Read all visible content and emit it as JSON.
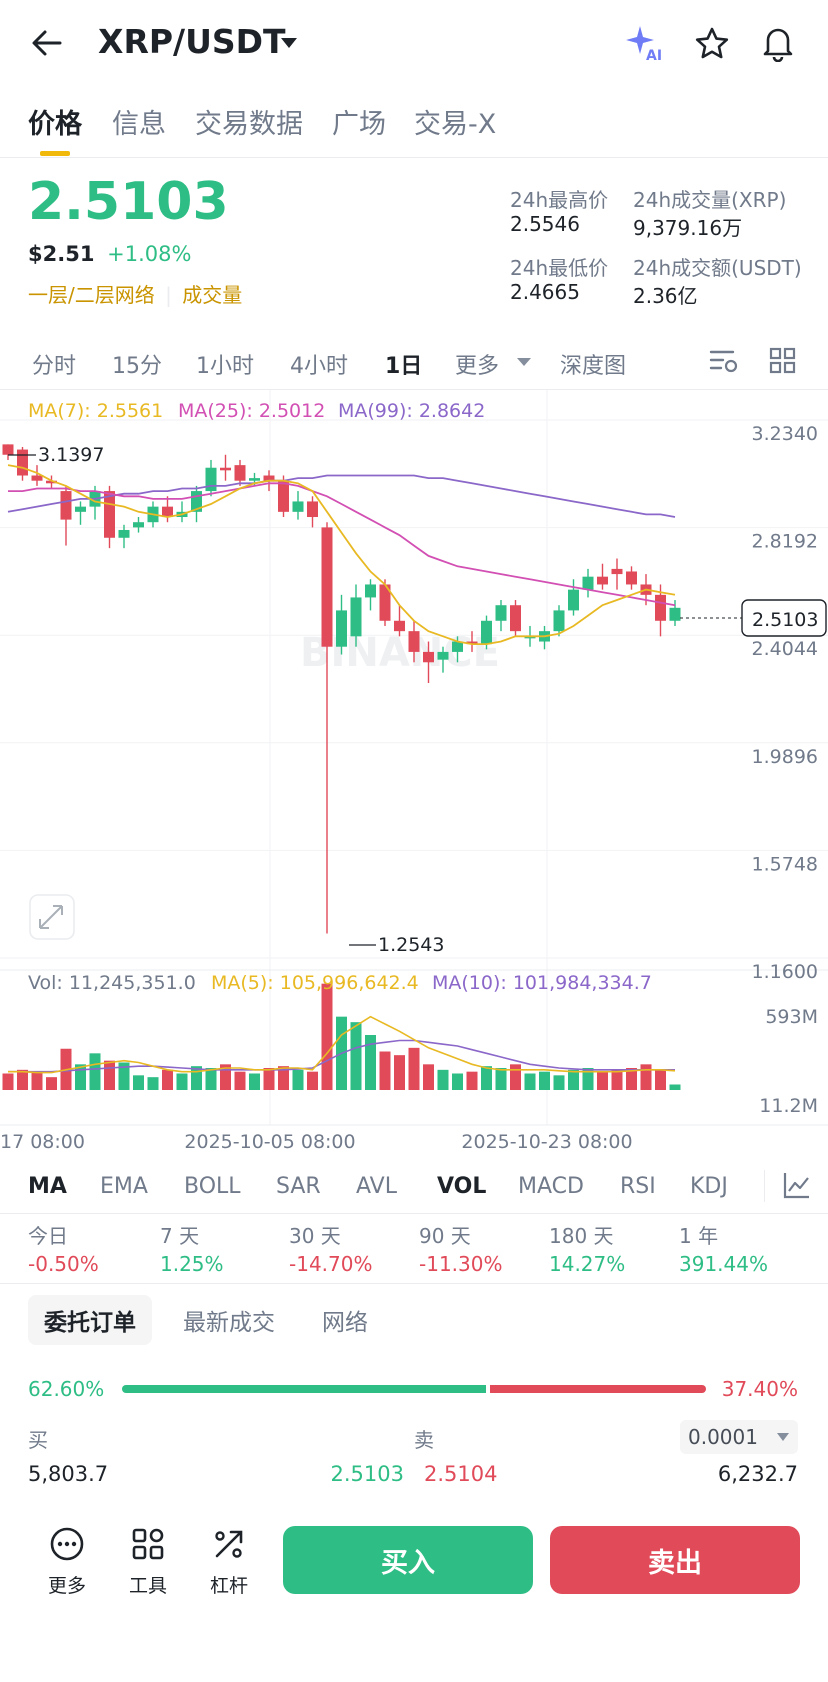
{
  "header": {
    "pair": "XRP/USDT"
  },
  "tabs": [
    "价格",
    "信息",
    "交易数据",
    "广场",
    "交易-X"
  ],
  "price": {
    "last": "2.5103",
    "usd": "$2.51",
    "change": "+1.08%",
    "tag_network": "一层/二层网络",
    "tag_volume": "成交量",
    "stats": {
      "high_label": "24h最高价",
      "high": "2.5546",
      "low_label": "24h最低价",
      "low": "2.4665",
      "vol_label": "24h成交量(XRP)",
      "vol": "9,379.16万",
      "amt_label": "24h成交额(USDT)",
      "amt": "2.36亿"
    }
  },
  "intervals": [
    "分时",
    "15分",
    "1小时",
    "4小时",
    "1日",
    "更多",
    "深度图"
  ],
  "chart": {
    "ma7": "MA(7): 2.5561",
    "ma25": "MA(25): 2.5012",
    "ma99": "MA(99): 2.8642",
    "y_ticks": [
      "3.2340",
      "2.8192",
      "2.4044",
      "1.9896",
      "1.5748",
      "1.1600"
    ],
    "current_tag": "2.5103",
    "hi_label": "3.1397",
    "lo_label": "1.2543",
    "watermark": "BINANCE",
    "vol_label": "Vol: 11,245,351.0",
    "vol_ma5": "MA(5): 105,996,642.4",
    "vol_ma10": "MA(10): 101,984,334.7",
    "vol_ticks": [
      "593M",
      "11.2M"
    ],
    "x_labels": [
      "17 08:00",
      "2025-10-05 08:00",
      "2025-10-23 08:00"
    ]
  },
  "indicators": [
    "MA",
    "EMA",
    "BOLL",
    "SAR",
    "AVL",
    "VOL",
    "MACD",
    "RSI",
    "KDJ"
  ],
  "performance": [
    {
      "label": "今日",
      "value": "-0.50%",
      "dir": "down"
    },
    {
      "label": "7 天",
      "value": "1.25%",
      "dir": "up"
    },
    {
      "label": "30 天",
      "value": "-14.70%",
      "dir": "down"
    },
    {
      "label": "90 天",
      "value": "-11.30%",
      "dir": "down"
    },
    {
      "label": "180 天",
      "value": "14.27%",
      "dir": "up"
    },
    {
      "label": "1 年",
      "value": "391.44%",
      "dir": "up"
    }
  ],
  "orders": {
    "tabs": [
      "委托订单",
      "最新成交",
      "网络"
    ],
    "buy_pct": "62.60%",
    "sell_pct": "37.40%",
    "buy_ratio": 0.626,
    "buy_label": "买",
    "sell_label": "卖",
    "precision": "0.0001",
    "rows": [
      {
        "buy_qty": "5,803.7",
        "buy_price": "2.5103",
        "sell_price": "2.5104",
        "sell_qty": "6,232.7"
      }
    ]
  },
  "bottom": {
    "more": "更多",
    "tools": "工具",
    "leverage": "杠杆",
    "buy": "买入",
    "sell": "卖出"
  },
  "colors": {
    "up": "#2ebd85",
    "down": "#e04a59",
    "accent": "#f0b90b",
    "ma7": "#e8b923",
    "ma25": "#d24fb3",
    "ma99": "#8a67c9"
  },
  "chart_data": {
    "type": "candlestick",
    "y_range": [
      1.16,
      3.234
    ],
    "ohlc": [
      [
        3.14,
        3.14,
        3.08,
        3.1
      ],
      [
        3.12,
        3.13,
        3.0,
        3.02
      ],
      [
        3.02,
        3.06,
        2.98,
        3.0
      ],
      [
        3.0,
        3.02,
        2.97,
        2.99
      ],
      [
        2.96,
        2.98,
        2.75,
        2.85
      ],
      [
        2.88,
        2.92,
        2.83,
        2.9
      ],
      [
        2.9,
        2.98,
        2.85,
        2.96
      ],
      [
        2.96,
        2.98,
        2.74,
        2.78
      ],
      [
        2.78,
        2.83,
        2.74,
        2.81
      ],
      [
        2.82,
        2.86,
        2.8,
        2.84
      ],
      [
        2.84,
        2.92,
        2.82,
        2.9
      ],
      [
        2.9,
        2.94,
        2.84,
        2.86
      ],
      [
        2.86,
        2.92,
        2.84,
        2.88
      ],
      [
        2.88,
        2.98,
        2.84,
        2.96
      ],
      [
        2.96,
        3.08,
        2.94,
        3.05
      ],
      [
        3.05,
        3.1,
        3.0,
        3.04
      ],
      [
        3.06,
        3.08,
        2.98,
        3.0
      ],
      [
        3.0,
        3.03,
        2.98,
        3.01
      ],
      [
        3.02,
        3.04,
        2.96,
        3.0
      ],
      [
        3.0,
        3.02,
        2.86,
        2.88
      ],
      [
        2.88,
        2.96,
        2.85,
        2.92
      ],
      [
        2.92,
        2.94,
        2.82,
        2.86
      ],
      [
        2.82,
        2.84,
        1.2543,
        2.36
      ],
      [
        2.36,
        2.56,
        2.33,
        2.5
      ],
      [
        2.4,
        2.6,
        2.36,
        2.55
      ],
      [
        2.55,
        2.62,
        2.5,
        2.6
      ],
      [
        2.6,
        2.62,
        2.44,
        2.46
      ],
      [
        2.46,
        2.52,
        2.4,
        2.42
      ],
      [
        2.42,
        2.46,
        2.3,
        2.34
      ],
      [
        2.34,
        2.38,
        2.22,
        2.3
      ],
      [
        2.31,
        2.36,
        2.26,
        2.34
      ],
      [
        2.34,
        2.4,
        2.3,
        2.38
      ],
      [
        2.38,
        2.42,
        2.34,
        2.37
      ],
      [
        2.37,
        2.48,
        2.35,
        2.46
      ],
      [
        2.46,
        2.54,
        2.42,
        2.52
      ],
      [
        2.52,
        2.54,
        2.4,
        2.42
      ],
      [
        2.4,
        2.44,
        2.36,
        2.4
      ],
      [
        2.38,
        2.44,
        2.35,
        2.42
      ],
      [
        2.42,
        2.52,
        2.4,
        2.5
      ],
      [
        2.5,
        2.62,
        2.48,
        2.58
      ],
      [
        2.58,
        2.66,
        2.55,
        2.63
      ],
      [
        2.63,
        2.68,
        2.58,
        2.6
      ],
      [
        2.66,
        2.7,
        2.58,
        2.64
      ],
      [
        2.65,
        2.67,
        2.58,
        2.6
      ],
      [
        2.6,
        2.64,
        2.52,
        2.56
      ],
      [
        2.56,
        2.6,
        2.4,
        2.46
      ],
      [
        2.46,
        2.54,
        2.44,
        2.51
      ]
    ],
    "ma7": [
      3.06,
      3.05,
      3.03,
      3.0,
      2.98,
      2.95,
      2.92,
      2.91,
      2.9,
      2.88,
      2.87,
      2.86,
      2.87,
      2.89,
      2.91,
      2.94,
      2.97,
      2.99,
      3.0,
      3.0,
      2.99,
      2.96,
      2.88,
      2.8,
      2.72,
      2.65,
      2.6,
      2.52,
      2.46,
      2.42,
      2.4,
      2.38,
      2.37,
      2.37,
      2.38,
      2.4,
      2.4,
      2.4,
      2.41,
      2.44,
      2.48,
      2.52,
      2.54,
      2.56,
      2.58,
      2.57,
      2.56
    ],
    "ma25": [
      2.96,
      2.96,
      2.97,
      2.97,
      2.97,
      2.96,
      2.96,
      2.95,
      2.94,
      2.94,
      2.93,
      2.93,
      2.93,
      2.94,
      2.95,
      2.96,
      2.97,
      2.98,
      2.99,
      2.99,
      2.98,
      2.96,
      2.94,
      2.91,
      2.88,
      2.85,
      2.82,
      2.79,
      2.75,
      2.71,
      2.69,
      2.67,
      2.66,
      2.65,
      2.64,
      2.63,
      2.62,
      2.61,
      2.6,
      2.59,
      2.58,
      2.57,
      2.56,
      2.55,
      2.54,
      2.53,
      2.52
    ],
    "ma99": [
      2.88,
      2.89,
      2.9,
      2.91,
      2.92,
      2.93,
      2.93,
      2.94,
      2.95,
      2.95,
      2.96,
      2.96,
      2.97,
      2.97,
      2.98,
      2.98,
      2.99,
      2.99,
      3.0,
      3.0,
      3.01,
      3.01,
      3.02,
      3.02,
      3.02,
      3.02,
      3.02,
      3.02,
      3.02,
      3.01,
      3.01,
      3.0,
      2.99,
      2.98,
      2.97,
      2.96,
      2.95,
      2.94,
      2.93,
      2.92,
      2.91,
      2.9,
      2.89,
      2.88,
      2.87,
      2.87,
      2.86
    ],
    "volume_max": 593,
    "volume": [
      18,
      22,
      20,
      14,
      45,
      28,
      40,
      32,
      30,
      16,
      14,
      22,
      18,
      26,
      24,
      28,
      20,
      18,
      24,
      26,
      22,
      20,
      116,
      80,
      74,
      60,
      42,
      38,
      46,
      28,
      22,
      18,
      20,
      26,
      24,
      28,
      18,
      20,
      16,
      22,
      24,
      20,
      22,
      24,
      28,
      22,
      6
    ],
    "vol_ma5": [
      20,
      20,
      19,
      19,
      22,
      25,
      28,
      30,
      32,
      30,
      26,
      22,
      20,
      20,
      22,
      24,
      24,
      22,
      22,
      24,
      24,
      22,
      40,
      60,
      70,
      80,
      72,
      64,
      55,
      46,
      40,
      34,
      28,
      24,
      22,
      22,
      22,
      22,
      21,
      20,
      20,
      20,
      20,
      21,
      22,
      22,
      21
    ],
    "vol_ma10": [
      20,
      20,
      20,
      20,
      21,
      22,
      23,
      24,
      25,
      26,
      26,
      25,
      24,
      23,
      22,
      22,
      22,
      22,
      22,
      22,
      23,
      24,
      32,
      40,
      46,
      50,
      52,
      54,
      54,
      52,
      50,
      48,
      44,
      40,
      36,
      32,
      28,
      26,
      24,
      23,
      22,
      22,
      22,
      22,
      22,
      22,
      22
    ]
  }
}
